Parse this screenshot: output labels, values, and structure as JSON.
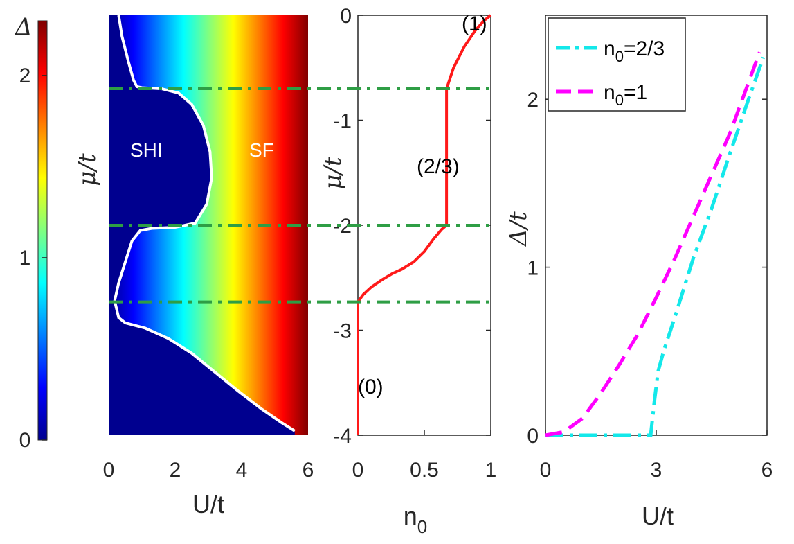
{
  "colors": {
    "jet": [
      "#00008f",
      "#0000ff",
      "#0080ff",
      "#00ffff",
      "#80ff80",
      "#ffff00",
      "#ff8000",
      "#ff0000",
      "#800000"
    ],
    "deep_blue": "#00008f",
    "boundary": "#ffffff",
    "dashline": "#2e9e45",
    "n0_curve": "#ff1a1a",
    "series_cyan": "#14e8ea",
    "series_magenta": "#ff00ff",
    "axis": "#262626"
  },
  "chart_data": [
    {
      "id": "colorbar",
      "type": "colorbar",
      "label": "Δ",
      "ylim": [
        0,
        2.3
      ],
      "ticks": [
        {
          "v": 0,
          "label": "0"
        },
        {
          "v": 1,
          "label": "1"
        },
        {
          "v": 2,
          "label": "2"
        }
      ]
    },
    {
      "id": "phase",
      "type": "heatmap",
      "xlabel": "U/t",
      "ylabel": "μ/t",
      "xlim": [
        0,
        6
      ],
      "ylim": [
        -4,
        0
      ],
      "xticks": [
        {
          "v": 0,
          "label": "0"
        },
        {
          "v": 2,
          "label": "2"
        },
        {
          "v": 4,
          "label": "4"
        },
        {
          "v": 6,
          "label": "6"
        }
      ],
      "region_labels": [
        {
          "text": "SHI",
          "x": 1.25,
          "y": -1.25
        },
        {
          "text": "SF",
          "x": 4.55,
          "y": -1.25
        }
      ],
      "boundary": [
        [
          [
            0.3,
            0.0
          ],
          [
            0.4,
            -0.2
          ],
          [
            0.6,
            -0.45
          ],
          [
            0.75,
            -0.62
          ],
          [
            0.85,
            -0.68
          ],
          [
            1.0,
            -0.69
          ],
          [
            1.6,
            -0.7
          ],
          [
            2.1,
            -0.74
          ],
          [
            2.5,
            -0.85
          ],
          [
            2.85,
            -1.05
          ],
          [
            3.05,
            -1.3
          ],
          [
            3.1,
            -1.55
          ],
          [
            2.95,
            -1.8
          ],
          [
            2.6,
            -1.98
          ],
          [
            2.0,
            -2.02
          ],
          [
            1.3,
            -2.03
          ],
          [
            0.95,
            -2.05
          ],
          [
            0.7,
            -2.15
          ],
          [
            0.5,
            -2.35
          ],
          [
            0.3,
            -2.55
          ],
          [
            0.18,
            -2.72
          ],
          [
            0.3,
            -2.88
          ],
          [
            0.5,
            -2.93
          ]
        ],
        [
          [
            0.5,
            -2.93
          ],
          [
            1.1,
            -2.98
          ],
          [
            1.8,
            -3.08
          ],
          [
            2.5,
            -3.22
          ],
          [
            3.2,
            -3.4
          ],
          [
            3.9,
            -3.58
          ],
          [
            4.6,
            -3.75
          ],
          [
            5.2,
            -3.88
          ],
          [
            5.6,
            -3.96
          ]
        ]
      ]
    },
    {
      "id": "n0",
      "type": "line",
      "xlabel": "n",
      "xlabel_sub": "0",
      "ylabel": "μ/t",
      "xlim": [
        0,
        1
      ],
      "ylim": [
        -4,
        0
      ],
      "xticks": [
        {
          "v": 0,
          "label": "0"
        },
        {
          "v": 0.5,
          "label": "0.5"
        },
        {
          "v": 1,
          "label": "1"
        }
      ],
      "yticks": [
        {
          "v": 0,
          "label": "0"
        },
        {
          "v": -1,
          "label": "-1"
        },
        {
          "v": -2,
          "label": "-2"
        },
        {
          "v": -3,
          "label": "-3"
        },
        {
          "v": -4,
          "label": "-4"
        }
      ],
      "series": [
        {
          "name": "n0(mu)",
          "x": [
            0,
            0,
            0.04,
            0.1,
            0.18,
            0.26,
            0.33,
            0.42,
            0.5,
            0.57,
            0.63,
            0.667,
            0.667,
            0.667,
            0.72,
            0.8,
            0.88,
            0.95,
            1.0
          ],
          "y": [
            -4,
            -2.73,
            -2.66,
            -2.59,
            -2.52,
            -2.46,
            -2.42,
            -2.35,
            -2.25,
            -2.13,
            -2.04,
            -2.0,
            -1.35,
            -0.7,
            -0.5,
            -0.3,
            -0.15,
            -0.05,
            0
          ]
        }
      ],
      "annotations": [
        {
          "text": "(1)",
          "x": 0.93,
          "y": -0.1
        },
        {
          "text": "(2/3)",
          "x": 0.68,
          "y": -1.4
        },
        {
          "text": "(0)",
          "x": 0.09,
          "y": -3.57
        }
      ]
    },
    {
      "id": "gap",
      "type": "line",
      "xlabel": "U/t",
      "ylabel": "Δ/t",
      "xlim": [
        0,
        6
      ],
      "ylim": [
        0,
        2.5
      ],
      "xticks": [
        {
          "v": 0,
          "label": "0"
        },
        {
          "v": 3,
          "label": "3"
        },
        {
          "v": 6,
          "label": "6"
        }
      ],
      "yticks": [
        {
          "v": 0,
          "label": "0"
        },
        {
          "v": 1,
          "label": "1"
        },
        {
          "v": 2,
          "label": "2"
        }
      ],
      "legend_position": "top-left",
      "series": [
        {
          "name": "n",
          "sub": "0",
          "suffix": "=2/3",
          "x": [
            0,
            1,
            2,
            2.85,
            2.95,
            3.05,
            3.2,
            3.5,
            4,
            4.5,
            5,
            5.5,
            5.9
          ],
          "y": [
            0,
            0,
            0,
            0,
            0.2,
            0.38,
            0.5,
            0.7,
            1.05,
            1.35,
            1.68,
            2.0,
            2.25
          ]
        },
        {
          "name": "n",
          "sub": "0",
          "suffix": "=1",
          "x": [
            0,
            0.5,
            1,
            1.5,
            2,
            2.5,
            3,
            3.5,
            4,
            4.5,
            5,
            5.5,
            5.8
          ],
          "y": [
            0,
            0.02,
            0.1,
            0.25,
            0.42,
            0.6,
            0.82,
            1.05,
            1.3,
            1.55,
            1.8,
            2.1,
            2.28
          ]
        }
      ]
    }
  ],
  "dash_lines_mu": [
    -0.7,
    -2.0,
    -2.73
  ]
}
